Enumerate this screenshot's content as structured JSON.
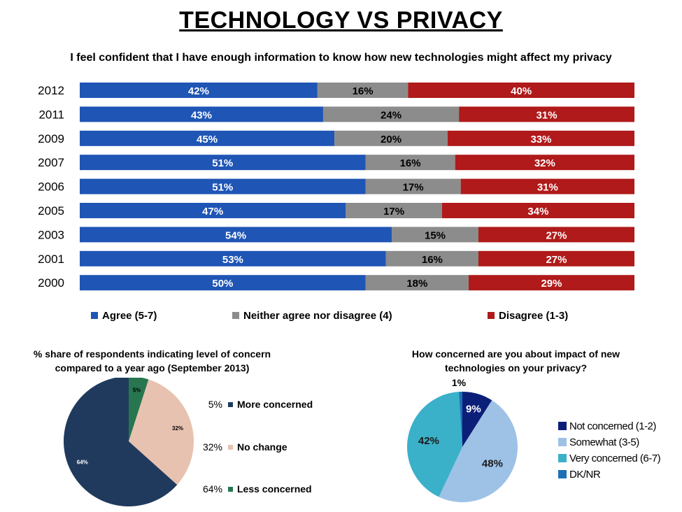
{
  "title": "TECHNOLOGY VS PRIVACY",
  "subtitle": "I feel confident that I have enough information to know how new technologies might affect my privacy",
  "chart_data": [
    {
      "type": "bar",
      "orientation": "horizontal-stacked-100",
      "title": "I feel confident that I have enough information to know how new technologies might affect my privacy",
      "categories": [
        "2012",
        "2011",
        "2009",
        "2007",
        "2006",
        "2005",
        "2003",
        "2001",
        "2000"
      ],
      "series": [
        {
          "name": "Agree (5-7)",
          "color": "#1f55b5",
          "values": [
            42,
            43,
            45,
            51,
            51,
            47,
            54,
            53,
            50
          ]
        },
        {
          "name": "Neither agree nor disagree (4)",
          "color": "#8c8c8c",
          "values": [
            16,
            24,
            20,
            16,
            17,
            17,
            15,
            16,
            18
          ]
        },
        {
          "name": "Disagree (1-3)",
          "color": "#b01a1a",
          "values": [
            40,
            31,
            33,
            32,
            31,
            34,
            27,
            27,
            29
          ]
        }
      ],
      "value_suffix": "%",
      "legend_position": "bottom"
    },
    {
      "type": "pie",
      "title": "% share of respondents indicating level of concern compared to a year ago (September 2013)",
      "slices": [
        {
          "name": "More concerned",
          "value": 5,
          "label": "5%",
          "color": "#27764f"
        },
        {
          "name": "No change",
          "value": 32,
          "label": "32%",
          "color": "#e8c2b0"
        },
        {
          "name": "Less concerned",
          "value": 64,
          "label": "64%",
          "color": "#203a5e"
        }
      ],
      "legend": [
        {
          "value": "5%",
          "name": "More concerned",
          "color": "#203a5e"
        },
        {
          "value": "32%",
          "name": "No change",
          "color": "#e8c2b0"
        },
        {
          "value": "64%",
          "name": "Less concerned",
          "color": "#27764f"
        }
      ],
      "legend_position": "right"
    },
    {
      "type": "pie",
      "title": "How concerned are you about impact of new technologies on your privacy?",
      "slices": [
        {
          "name": "Not concerned (1-2)",
          "value": 9,
          "label": "9%",
          "color": "#0b1f78"
        },
        {
          "name": "Somewhat (3-5)",
          "value": 48,
          "label": "48%",
          "color": "#9ec1e6"
        },
        {
          "name": "Very concerned (6-7)",
          "value": 42,
          "label": "42%",
          "color": "#3bb0c9"
        },
        {
          "name": "DK/NR",
          "value": 1,
          "label": "1%",
          "color": "#1c6fb5"
        }
      ],
      "legend_position": "right"
    }
  ]
}
